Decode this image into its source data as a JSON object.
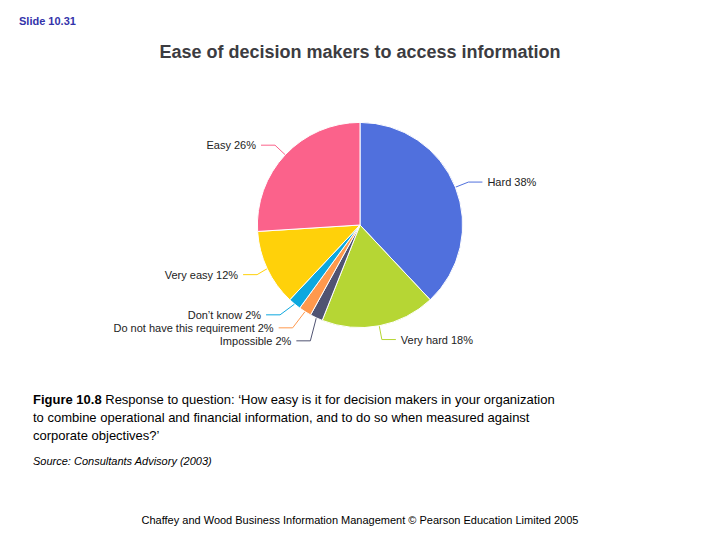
{
  "chart_data": {
    "type": "pie",
    "title": "Ease of decision makers to access information",
    "categories": [
      "Hard 38%",
      "Very hard 18%",
      "Impossible 2%",
      "Do not have this requirement 2%",
      "Don’t know 2%",
      "Very easy 12%",
      "Easy 26%"
    ],
    "values": [
      38,
      18,
      2,
      2,
      2,
      12,
      26
    ],
    "annotations": [
      "Slide 10.31",
      "Figure 10.8",
      "Response to question: ‘How easy is it for decision makers in your organization to combine operational and financial information, and to do so when measured against corporate objectives?’",
      "Source: Consultants Advisory (2003)",
      "Chaffey and Wood Business Information Management © Pearson Education Limited 2005"
    ]
  }
}
